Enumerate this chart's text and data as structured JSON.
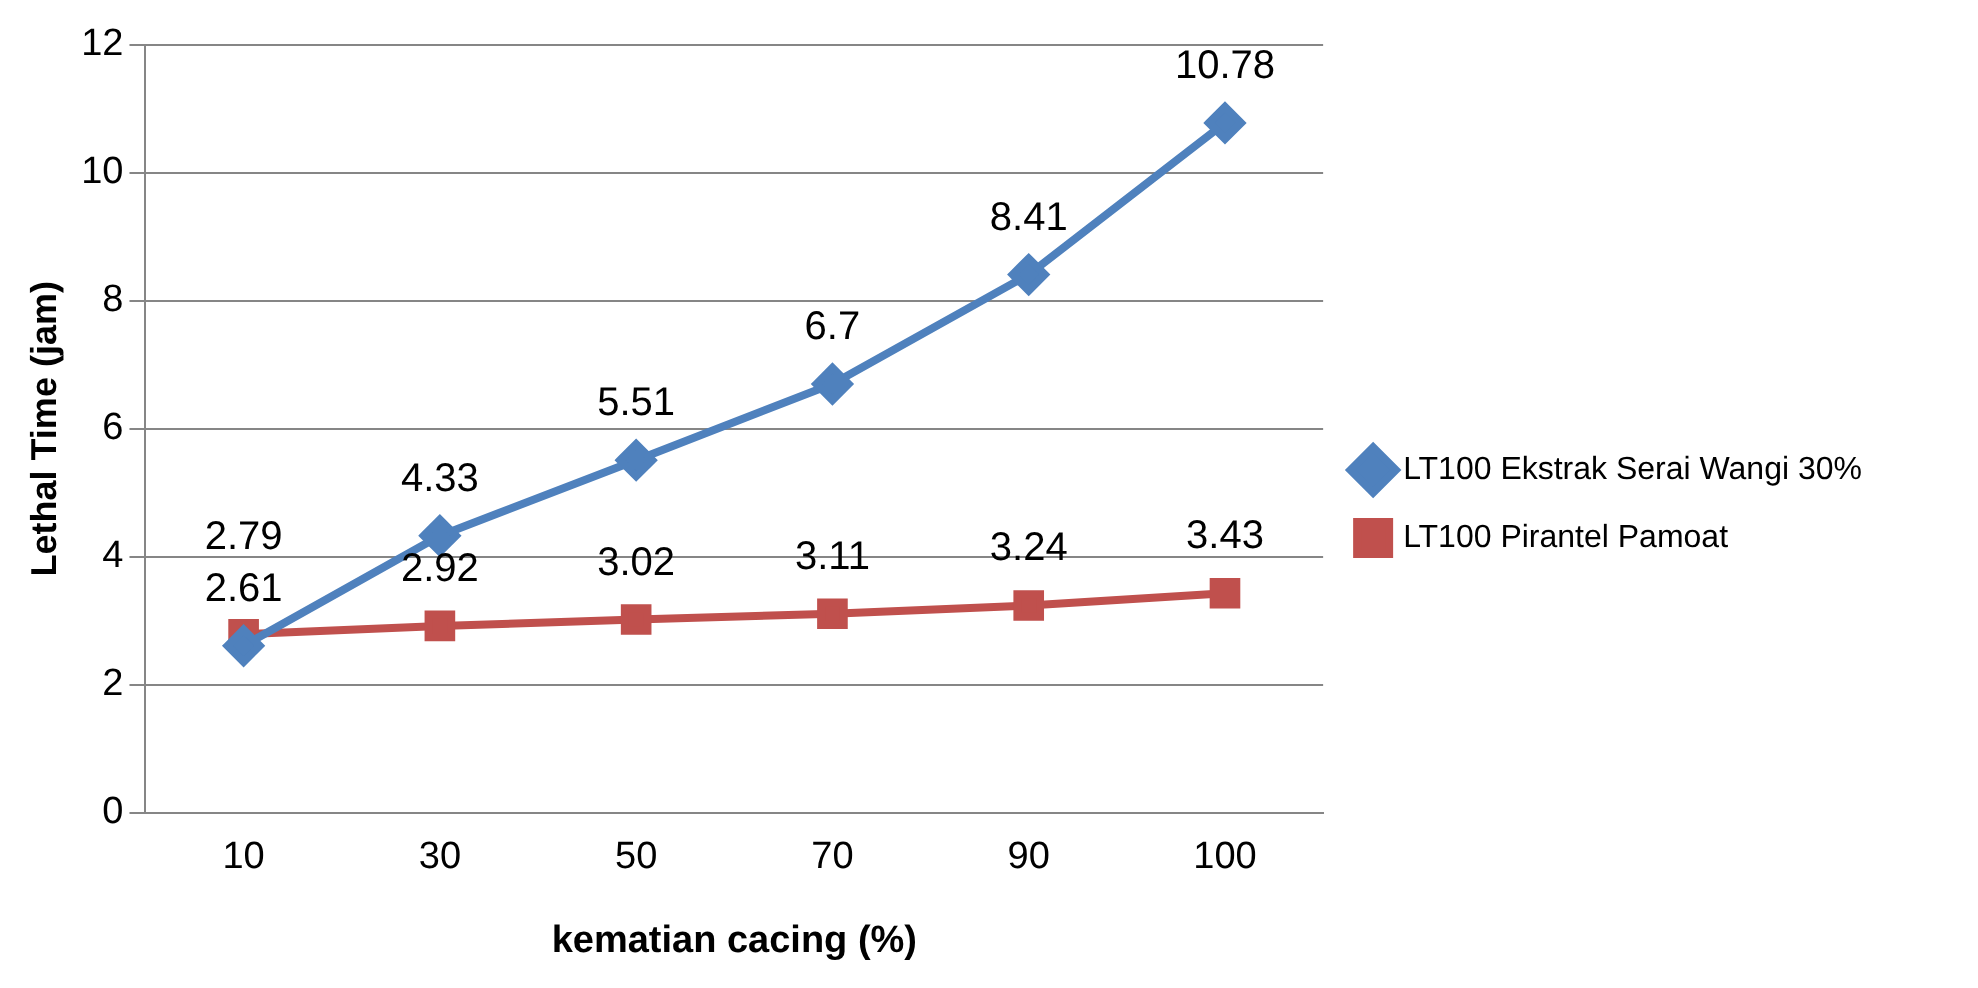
{
  "chart_data": {
    "type": "line",
    "xlabel": "kematian cacing (%)",
    "ylabel": "Lethal Time (jam)",
    "categories": [
      "10",
      "30",
      "50",
      "70",
      "90",
      "100"
    ],
    "series": [
      {
        "name": "LT100 Ekstrak Serai Wangi 30%",
        "color": "#4f81bd",
        "marker": "diamond",
        "values": [
          2.61,
          4.33,
          5.51,
          6.7,
          8.41,
          10.78
        ]
      },
      {
        "name": "LT100 Pirantel Pamoat",
        "color": "#c0504d",
        "marker": "square",
        "values": [
          2.79,
          2.92,
          3.02,
          3.11,
          3.24,
          3.43
        ]
      }
    ],
    "ylim": [
      0,
      12
    ],
    "yticks": [
      0,
      2,
      4,
      6,
      8,
      10,
      12
    ],
    "grid": "y",
    "legend": "right",
    "data_labels": true
  }
}
